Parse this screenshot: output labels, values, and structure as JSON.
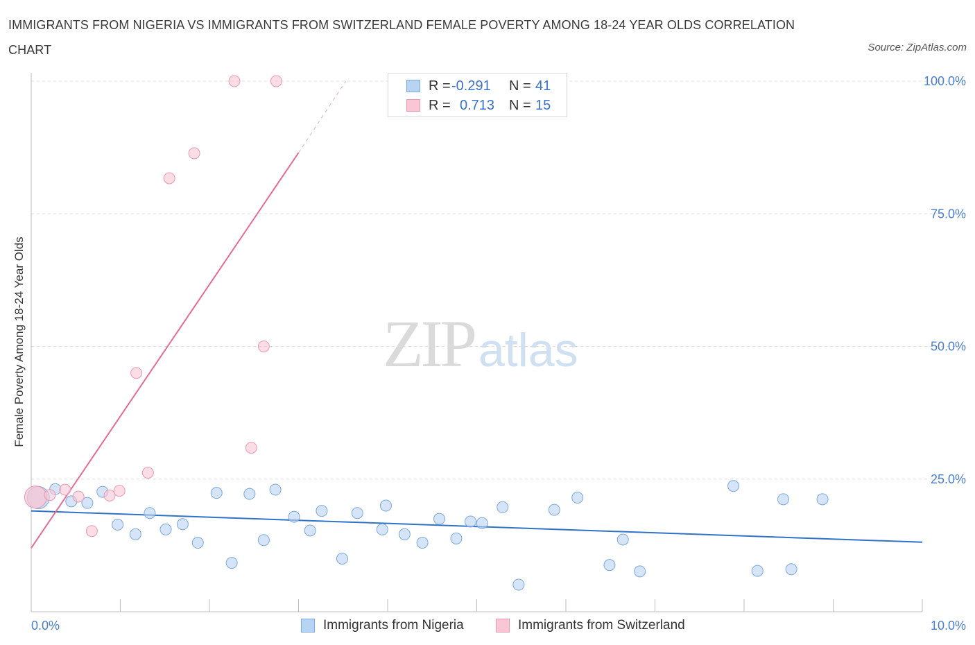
{
  "title": "IMMIGRANTS FROM NIGERIA VS IMMIGRANTS FROM SWITZERLAND FEMALE POVERTY AMONG 18-24 YEAR OLDS CORRELATION CHART",
  "source": "Source: ZipAtlas.com",
  "watermark": {
    "zip": "ZIP",
    "atlas": "atlas"
  },
  "legend": {
    "nigeria": {
      "r_label": "R =",
      "r_value": "-0.291",
      "n_label": "N =",
      "n_value": "41",
      "name": "Immigrants from Nigeria"
    },
    "switzerland": {
      "r_label": "R =",
      "r_value": "0.713",
      "n_label": "N =",
      "n_value": "15",
      "name": "Immigrants from Switzerland"
    }
  },
  "colors": {
    "nigeria_fill": "#b9d3f2",
    "nigeria_stroke": "#7aa8e0",
    "nigeria_line": "#2f72c8",
    "switzerland_fill": "#f8c6d4",
    "switzerland_stroke": "#ec98b1",
    "switzerland_line": "#e56b94",
    "tick_label": "#4a7fcf",
    "grid": "#dcdcdc"
  },
  "chart_data": {
    "type": "scatter",
    "title": "IMMIGRANTS FROM NIGERIA VS IMMIGRANTS FROM SWITZERLAND FEMALE POVERTY AMONG 18-24 YEAR OLDS CORRELATION CHART",
    "xlabel": "",
    "ylabel": "Female Poverty Among 18-24 Year Olds",
    "xlim": [
      0,
      10
    ],
    "ylim": [
      0,
      100
    ],
    "x_tick_labels": [
      {
        "value": 0,
        "label": "0.0%"
      },
      {
        "value": 10,
        "label": "10.0%"
      }
    ],
    "y_tick_labels": [
      {
        "value": 25,
        "label": "25.0%"
      },
      {
        "value": 50,
        "label": "50.0%"
      },
      {
        "value": 75,
        "label": "75.0%"
      },
      {
        "value": 100,
        "label": "100.0%"
      }
    ],
    "grid": true,
    "legend_position": "top-center",
    "series": [
      {
        "name": "Immigrants from Nigeria",
        "R": -0.291,
        "N": 41,
        "trend": {
          "x": [
            0,
            10
          ],
          "y": [
            19.0,
            13.1
          ]
        },
        "points": [
          {
            "x": 0.08,
            "y": 21.5,
            "big": true
          },
          {
            "x": 0.27,
            "y": 23.1
          },
          {
            "x": 0.45,
            "y": 20.8
          },
          {
            "x": 0.63,
            "y": 20.5
          },
          {
            "x": 0.8,
            "y": 22.6
          },
          {
            "x": 0.97,
            "y": 16.4
          },
          {
            "x": 1.17,
            "y": 14.6
          },
          {
            "x": 1.33,
            "y": 18.6
          },
          {
            "x": 1.51,
            "y": 15.5
          },
          {
            "x": 1.7,
            "y": 16.5
          },
          {
            "x": 1.87,
            "y": 13.0
          },
          {
            "x": 2.08,
            "y": 22.4
          },
          {
            "x": 2.25,
            "y": 9.2
          },
          {
            "x": 2.45,
            "y": 22.2
          },
          {
            "x": 2.61,
            "y": 13.5
          },
          {
            "x": 2.74,
            "y": 23.0
          },
          {
            "x": 2.95,
            "y": 17.9
          },
          {
            "x": 3.13,
            "y": 15.3
          },
          {
            "x": 3.26,
            "y": 19.0
          },
          {
            "x": 3.49,
            "y": 10.0
          },
          {
            "x": 3.66,
            "y": 18.6
          },
          {
            "x": 3.94,
            "y": 15.5
          },
          {
            "x": 3.98,
            "y": 20.0
          },
          {
            "x": 4.19,
            "y": 14.6
          },
          {
            "x": 4.39,
            "y": 13.0
          },
          {
            "x": 4.58,
            "y": 17.5
          },
          {
            "x": 4.77,
            "y": 13.8
          },
          {
            "x": 4.93,
            "y": 17.0
          },
          {
            "x": 5.06,
            "y": 16.7
          },
          {
            "x": 5.29,
            "y": 19.7
          },
          {
            "x": 5.47,
            "y": 5.1
          },
          {
            "x": 5.87,
            "y": 19.2
          },
          {
            "x": 6.13,
            "y": 21.5
          },
          {
            "x": 6.49,
            "y": 8.8
          },
          {
            "x": 6.64,
            "y": 13.6
          },
          {
            "x": 6.83,
            "y": 7.6
          },
          {
            "x": 7.88,
            "y": 23.7
          },
          {
            "x": 8.15,
            "y": 7.7
          },
          {
            "x": 8.44,
            "y": 21.2
          },
          {
            "x": 8.53,
            "y": 8.0
          },
          {
            "x": 8.88,
            "y": 21.2
          }
        ]
      },
      {
        "name": "Immigrants from Switzerland",
        "R": 0.713,
        "N": 15,
        "trend": {
          "x": [
            0,
            3.0
          ],
          "y": [
            12.0,
            86.5
          ]
        },
        "trend_dashed": {
          "x": [
            3.0,
            3.53
          ],
          "y": [
            86.5,
            100
          ]
        },
        "points": [
          {
            "x": 0.05,
            "y": 21.6,
            "big": true
          },
          {
            "x": 0.21,
            "y": 22.0
          },
          {
            "x": 0.38,
            "y": 23.0
          },
          {
            "x": 0.53,
            "y": 21.7
          },
          {
            "x": 0.68,
            "y": 15.2
          },
          {
            "x": 0.88,
            "y": 21.9
          },
          {
            "x": 0.99,
            "y": 22.8
          },
          {
            "x": 1.18,
            "y": 45.0
          },
          {
            "x": 1.31,
            "y": 26.2
          },
          {
            "x": 1.55,
            "y": 81.7
          },
          {
            "x": 1.83,
            "y": 86.4
          },
          {
            "x": 2.28,
            "y": 100
          },
          {
            "x": 2.47,
            "y": 30.9
          },
          {
            "x": 2.61,
            "y": 50.0
          },
          {
            "x": 2.75,
            "y": 100
          }
        ]
      }
    ]
  }
}
